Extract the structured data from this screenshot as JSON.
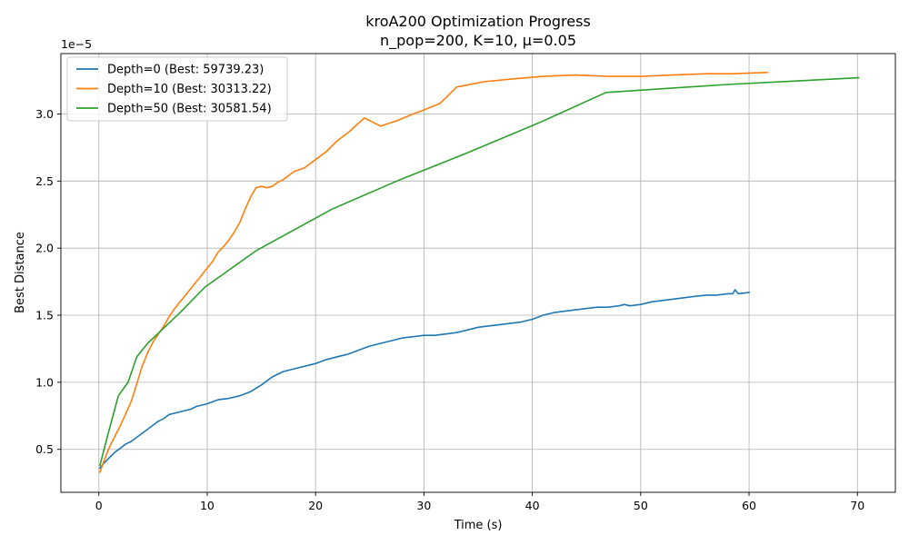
{
  "chart_data": {
    "type": "line",
    "title": "kroA200 Optimization Progress",
    "subtitle": "n_pop=200, K=10, μ=0.05",
    "xlabel": "Time (s)",
    "ylabel": "Best Distance",
    "y_offset_text": "1e−5",
    "xlim": [
      -3.5,
      73.5
    ],
    "ylim": [
      0.18,
      3.45
    ],
    "x_ticks": [
      0,
      10,
      20,
      30,
      40,
      50,
      60,
      70
    ],
    "y_ticks": [
      0.5,
      1.0,
      1.5,
      2.0,
      2.5,
      3.0
    ],
    "x_tick_labels": [
      "0",
      "10",
      "20",
      "30",
      "40",
      "50",
      "60",
      "70"
    ],
    "y_tick_labels": [
      "0.5",
      "1.0",
      "1.5",
      "2.0",
      "2.5",
      "3.0"
    ],
    "grid": true,
    "legend_position": "top-left",
    "series": [
      {
        "name": "Depth=0 (Best: 59739.23)",
        "color": "#1f77b4",
        "x": [
          0.1,
          0.5,
          1,
          1.5,
          2,
          2.5,
          3,
          3.5,
          4,
          4.5,
          5,
          5.5,
          6,
          6.5,
          7,
          7.5,
          8,
          8.5,
          9,
          9.5,
          10,
          11,
          12,
          13,
          14,
          15,
          16,
          17,
          18,
          19,
          20,
          21,
          22,
          23,
          24,
          25,
          26,
          27,
          28,
          29,
          30,
          31,
          32,
          33,
          34,
          35,
          36,
          37,
          38,
          39,
          40,
          41,
          42,
          43,
          44,
          45,
          46,
          47,
          48,
          48.5,
          49,
          50,
          51,
          52,
          53,
          54,
          55,
          56,
          57,
          58,
          58.5,
          58.7,
          59,
          60
        ],
        "values": [
          0.36,
          0.4,
          0.44,
          0.48,
          0.51,
          0.54,
          0.56,
          0.59,
          0.62,
          0.65,
          0.68,
          0.71,
          0.73,
          0.76,
          0.77,
          0.78,
          0.79,
          0.8,
          0.82,
          0.83,
          0.84,
          0.87,
          0.88,
          0.9,
          0.93,
          0.98,
          1.04,
          1.08,
          1.1,
          1.12,
          1.14,
          1.17,
          1.19,
          1.21,
          1.24,
          1.27,
          1.29,
          1.31,
          1.33,
          1.34,
          1.35,
          1.35,
          1.36,
          1.37,
          1.39,
          1.41,
          1.42,
          1.43,
          1.44,
          1.45,
          1.47,
          1.5,
          1.52,
          1.53,
          1.54,
          1.55,
          1.56,
          1.56,
          1.57,
          1.58,
          1.57,
          1.58,
          1.6,
          1.61,
          1.62,
          1.63,
          1.64,
          1.65,
          1.65,
          1.66,
          1.66,
          1.69,
          1.66,
          1.67
        ]
      },
      {
        "name": "Depth=10 (Best: 30313.22)",
        "color": "#ff7f0e",
        "x": [
          0.1,
          0.5,
          1,
          1.5,
          2,
          2.5,
          3,
          3.5,
          4,
          4.5,
          5,
          5.5,
          6,
          6.5,
          7,
          7.5,
          8,
          8.5,
          9,
          9.5,
          10,
          10.5,
          11,
          11.5,
          12,
          12.5,
          13,
          13.5,
          14,
          14.5,
          15,
          15.5,
          16,
          16.5,
          17,
          17.5,
          18,
          19,
          20,
          21,
          22,
          23,
          24.5,
          26,
          27.5,
          29,
          30,
          31.5,
          33,
          35.5,
          38,
          41,
          44,
          47,
          50,
          53,
          56,
          58.5,
          61.7
        ],
        "values": [
          0.33,
          0.42,
          0.52,
          0.6,
          0.68,
          0.77,
          0.86,
          0.99,
          1.12,
          1.22,
          1.3,
          1.36,
          1.42,
          1.49,
          1.55,
          1.6,
          1.65,
          1.7,
          1.75,
          1.8,
          1.85,
          1.9,
          1.97,
          2.01,
          2.06,
          2.12,
          2.19,
          2.29,
          2.38,
          2.45,
          2.46,
          2.45,
          2.46,
          2.49,
          2.51,
          2.54,
          2.57,
          2.6,
          2.66,
          2.72,
          2.8,
          2.86,
          2.97,
          2.91,
          2.95,
          3.0,
          3.03,
          3.08,
          3.2,
          3.24,
          3.26,
          3.28,
          3.29,
          3.28,
          3.28,
          3.29,
          3.3,
          3.3,
          3.31
        ]
      },
      {
        "name": "Depth=50 (Best: 30581.54)",
        "color": "#2ca02c",
        "x": [
          0.1,
          0.8,
          1.8,
          2.7,
          3.5,
          4.5,
          5.8,
          7.5,
          9.8,
          14.5,
          21.5,
          27.5,
          34.0,
          40.5,
          46.8,
          58.0,
          70.1
        ],
        "values": [
          0.38,
          0.6,
          0.9,
          1.0,
          1.19,
          1.29,
          1.39,
          1.52,
          1.71,
          1.98,
          2.29,
          2.5,
          2.71,
          2.93,
          3.16,
          3.22,
          3.27
        ]
      }
    ]
  }
}
